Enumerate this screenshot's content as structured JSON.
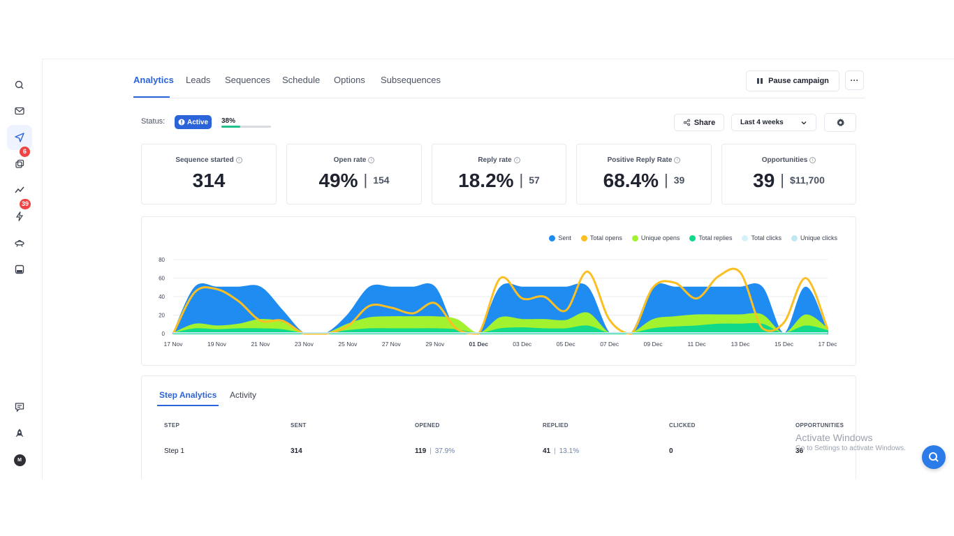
{
  "sidebar": {
    "items": [
      {
        "name": "search-icon"
      },
      {
        "name": "mail-icon"
      },
      {
        "name": "send-icon",
        "active": true
      },
      {
        "name": "copy-icon",
        "badge": "6"
      },
      {
        "name": "trend-icon"
      },
      {
        "name": "bolt-icon",
        "badge": "39"
      },
      {
        "name": "ufo-icon"
      },
      {
        "name": "inbox-icon"
      }
    ],
    "bottom": [
      {
        "name": "feedback-icon"
      },
      {
        "name": "rocket-icon"
      },
      {
        "name": "avatar",
        "text": "M"
      }
    ]
  },
  "tabs": [
    {
      "label": "Analytics",
      "active": true
    },
    {
      "label": "Leads"
    },
    {
      "label": "Sequences"
    },
    {
      "label": "Schedule"
    },
    {
      "label": "Options"
    },
    {
      "label": "Subsequences"
    }
  ],
  "header": {
    "pause_label": "Pause campaign",
    "more_label": "···"
  },
  "status": {
    "label": "Status:",
    "pill": "Active",
    "progress_text": "38%",
    "progress": 0.38
  },
  "toolbar": {
    "share_label": "Share",
    "range_label": "Last 4 weeks"
  },
  "stats": [
    {
      "label": "Sequence started",
      "value": "314",
      "secondary": ""
    },
    {
      "label": "Open rate",
      "value": "49%",
      "secondary": "154"
    },
    {
      "label": "Reply rate",
      "value": "18.2%",
      "secondary": "57"
    },
    {
      "label": "Positive Reply Rate",
      "value": "68.4%",
      "secondary": "39"
    },
    {
      "label": "Opportunities",
      "value": "39",
      "secondary": "$11,700"
    }
  ],
  "chart_data": {
    "type": "area",
    "legend": [
      {
        "name": "Sent",
        "color": "#1e8cf0"
      },
      {
        "name": "Total opens",
        "color": "#fbbf24"
      },
      {
        "name": "Unique opens",
        "color": "#a3f230"
      },
      {
        "name": "Total replies",
        "color": "#10d98a"
      },
      {
        "name": "Total clicks",
        "color": "#d7f1f8"
      },
      {
        "name": "Unique clicks",
        "color": "#bfe8f4"
      }
    ],
    "x_ticks": [
      "17 Nov",
      "19 Nov",
      "21 Nov",
      "23 Nov",
      "25 Nov",
      "27 Nov",
      "29 Nov",
      "01 Dec",
      "03 Dec",
      "05 Dec",
      "07 Dec",
      "09 Dec",
      "11 Dec",
      "13 Dec",
      "15 Dec",
      "17 Dec"
    ],
    "y_ticks": [
      0,
      20,
      40,
      60,
      80
    ],
    "ylim": [
      0,
      80
    ],
    "x_start": "17 Nov",
    "days": [
      "17 Nov",
      "18 Nov",
      "19 Nov",
      "20 Nov",
      "21 Nov",
      "22 Nov",
      "23 Nov",
      "24 Nov",
      "25 Nov",
      "26 Nov",
      "27 Nov",
      "28 Nov",
      "29 Nov",
      "30 Nov",
      "01 Dec",
      "02 Dec",
      "03 Dec",
      "04 Dec",
      "05 Dec",
      "06 Dec",
      "07 Dec",
      "08 Dec",
      "09 Dec",
      "10 Dec",
      "11 Dec",
      "12 Dec",
      "13 Dec",
      "14 Dec",
      "15 Dec",
      "16 Dec",
      "17 Dec"
    ],
    "series": [
      {
        "name": "Sent",
        "color": "#1e8cf0",
        "fill": true,
        "values": [
          0,
          50,
          50,
          50,
          50,
          25,
          0,
          0,
          20,
          50,
          50,
          50,
          50,
          0,
          0,
          50,
          50,
          50,
          50,
          50,
          0,
          0,
          50,
          50,
          50,
          50,
          50,
          50,
          0,
          50,
          0
        ]
      },
      {
        "name": "Unique opens",
        "color": "#a3f230",
        "fill": true,
        "values": [
          0,
          10,
          8,
          10,
          15,
          12,
          0,
          0,
          10,
          17,
          18,
          18,
          18,
          15,
          0,
          17,
          15,
          15,
          14,
          22,
          0,
          0,
          15,
          18,
          20,
          20,
          20,
          20,
          0,
          20,
          5
        ]
      },
      {
        "name": "Total replies",
        "color": "#10d98a",
        "fill": true,
        "values": [
          0,
          5,
          4,
          5,
          5,
          4,
          0,
          0,
          3,
          5,
          5,
          5,
          5,
          4,
          0,
          5,
          6,
          5,
          5,
          8,
          0,
          0,
          5,
          7,
          8,
          10,
          10,
          10,
          0,
          8,
          3
        ]
      },
      {
        "name": "Total opens",
        "color": "#fbbf24",
        "fill": false,
        "values": [
          0,
          45,
          48,
          35,
          14,
          14,
          0,
          0,
          8,
          30,
          28,
          22,
          33,
          5,
          0,
          60,
          38,
          40,
          25,
          67,
          15,
          0,
          50,
          55,
          38,
          62,
          66,
          6,
          12,
          60,
          5
        ]
      }
    ]
  },
  "table": {
    "tabs": [
      {
        "label": "Step Analytics",
        "active": true
      },
      {
        "label": "Activity"
      }
    ],
    "headers": [
      "STEP",
      "SENT",
      "OPENED",
      "REPLIED",
      "CLICKED",
      "OPPORTUNITIES"
    ],
    "rows": [
      {
        "step": "Step 1",
        "sent": "314",
        "opened": "119",
        "opened_pct": "37.9%",
        "replied": "41",
        "replied_pct": "13.1%",
        "clicked": "0",
        "opportunities": "36"
      }
    ]
  },
  "watermark": {
    "line1": "Activate Windows",
    "line2": "Go to Settings to activate Windows."
  },
  "colors": {
    "accent": "#2b63d9",
    "progress": "#21c08a",
    "badge": "#ef4444"
  }
}
